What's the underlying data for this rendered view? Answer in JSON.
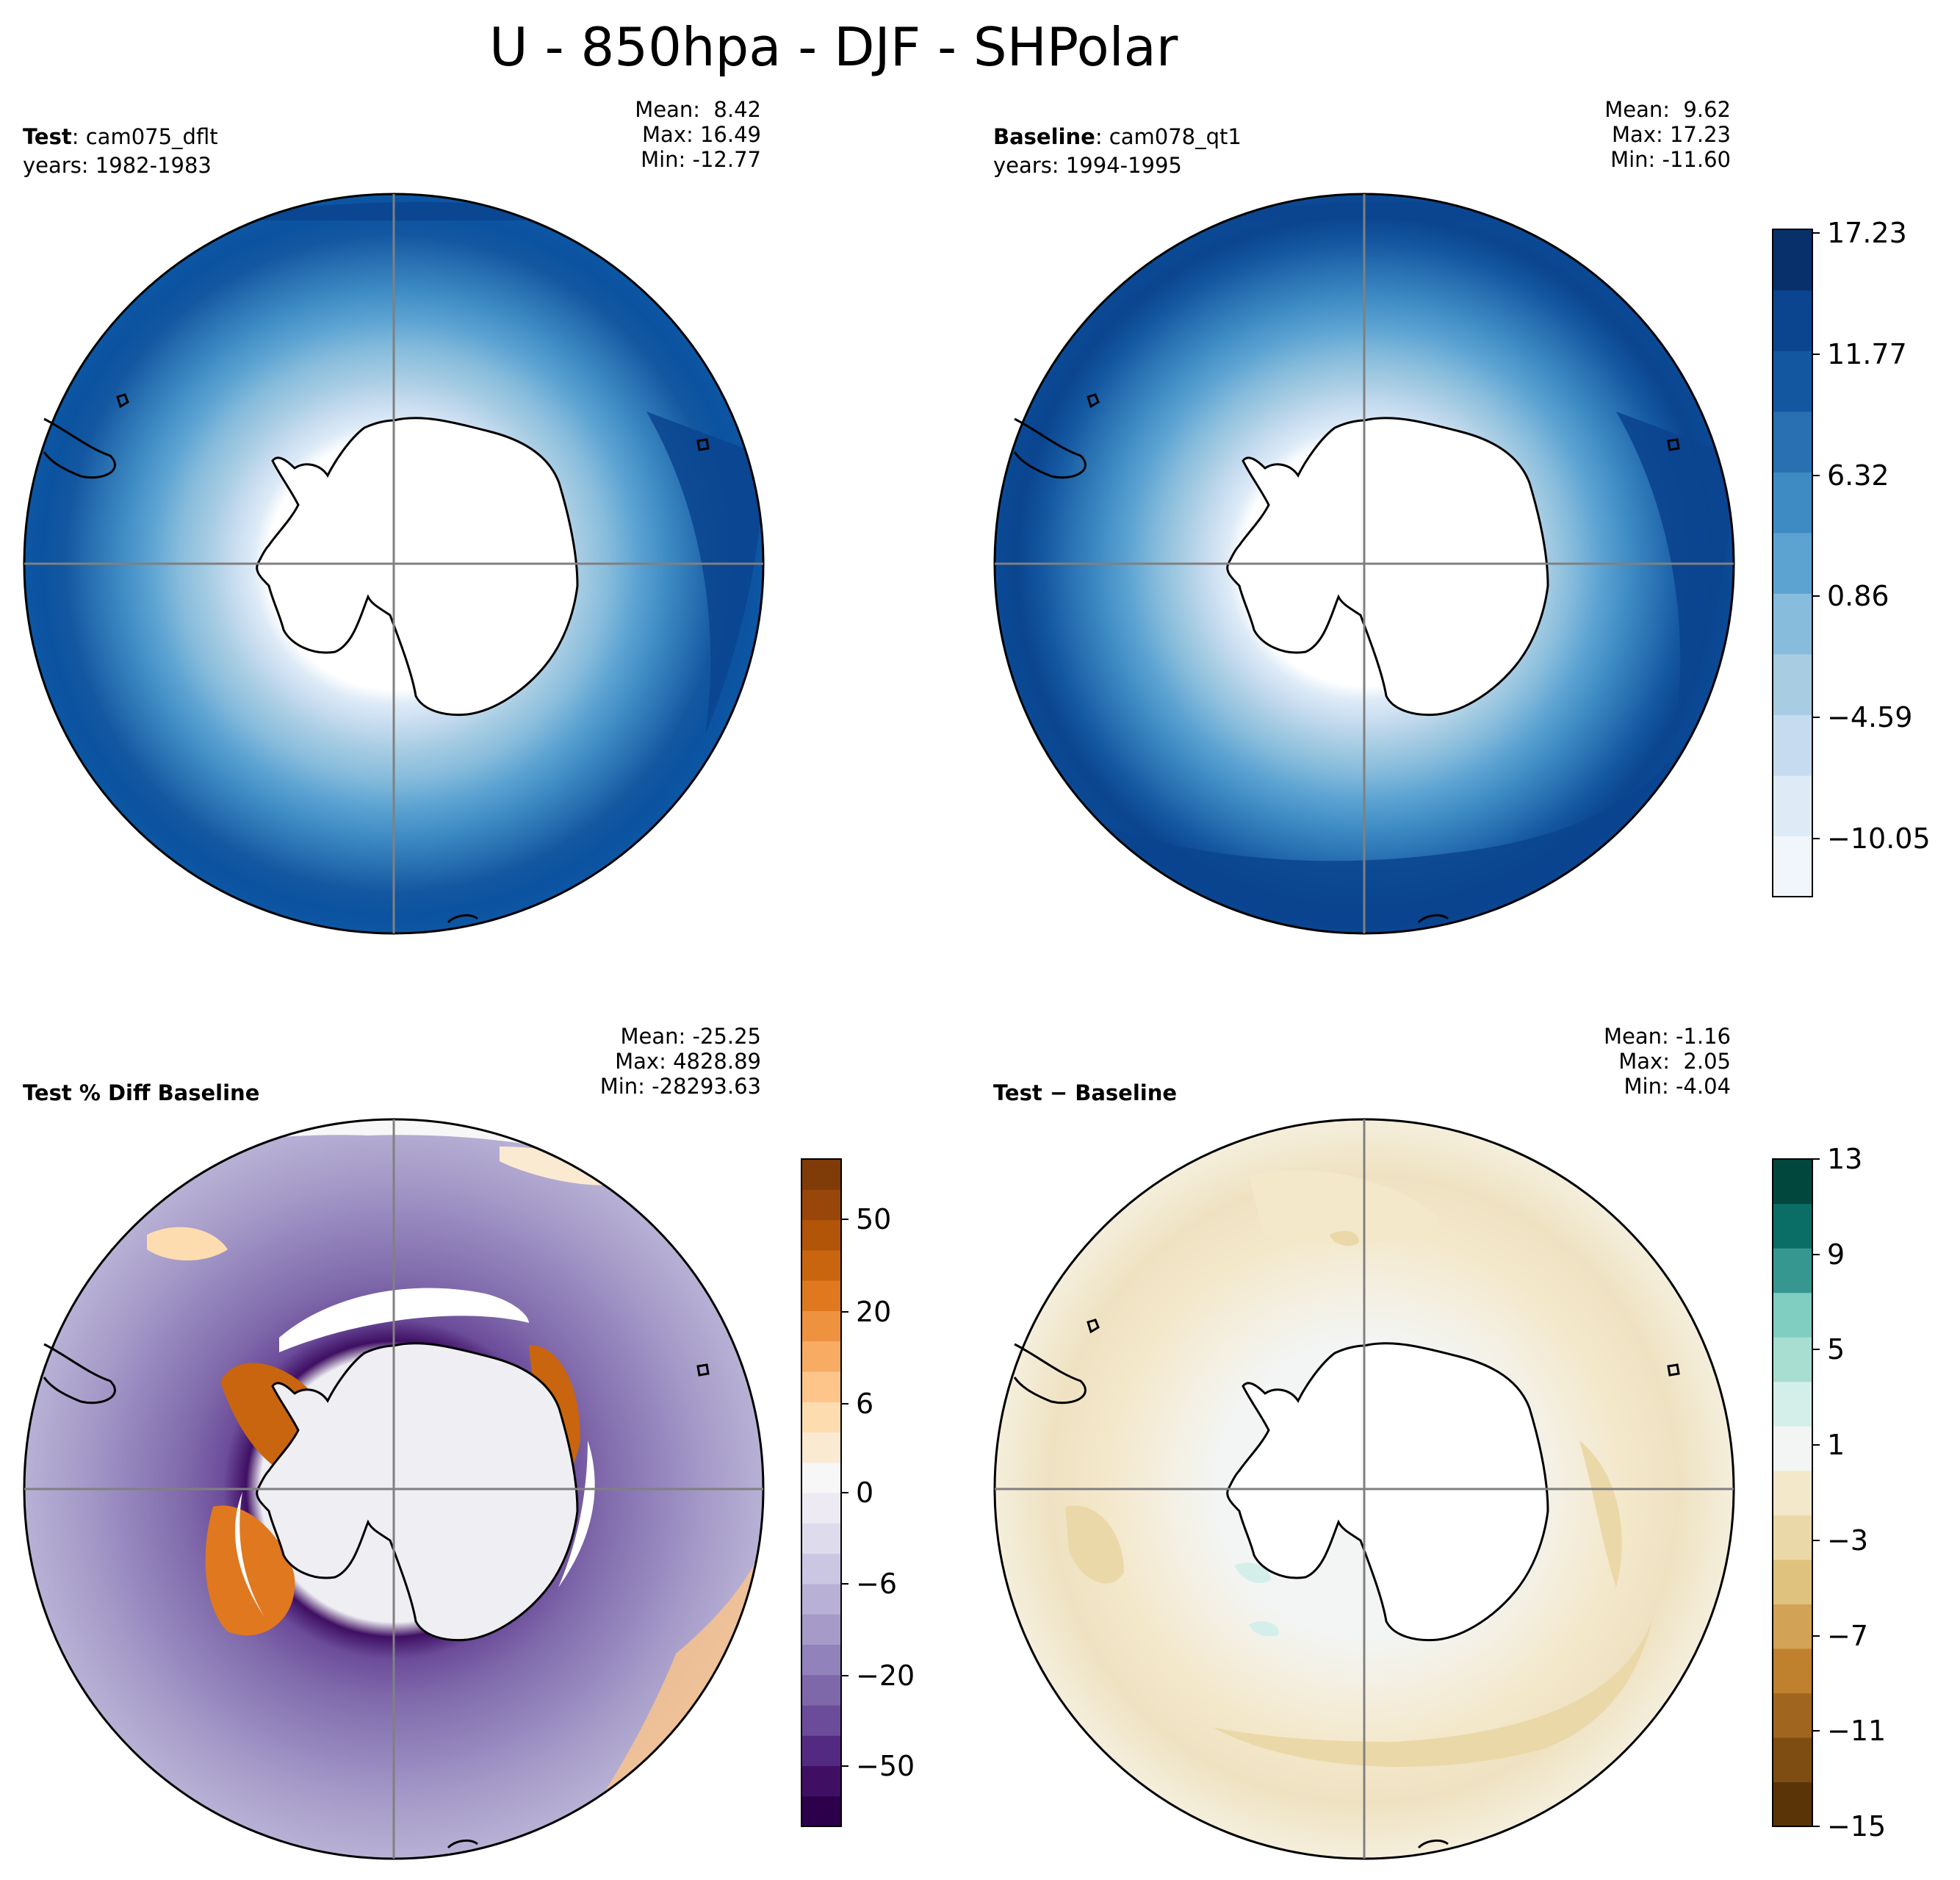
{
  "figure": {
    "title": "U - 850hpa - DJF - SHPolar"
  },
  "chart_data": [
    {
      "type": "heatmap",
      "projection": "south-polar-stereographic",
      "panel": "top-left",
      "label_bold": "Test",
      "label_rest": ": cam075_dflt",
      "years": "years: 1982-1983",
      "mean": "Mean:  8.42",
      "max": "Max: 16.49",
      "min": "Min: -12.77",
      "colormap": "Blues",
      "colorbar_shared_with_next": true
    },
    {
      "type": "heatmap",
      "projection": "south-polar-stereographic",
      "panel": "top-right",
      "label_bold": "Baseline",
      "label_rest": ": cam078_qt1",
      "years": "years: 1994-1995",
      "mean": "Mean:  9.62",
      "max": "Max: 17.23",
      "min": "Min: -11.60",
      "colormap": "Blues",
      "colorbar": {
        "range": [
          -12.77,
          17.23
        ],
        "ticks": [
          "17.23",
          "11.77",
          "6.32",
          "0.86",
          "−4.59",
          "−10.05"
        ],
        "tick_values": [
          17.23,
          11.77,
          6.32,
          0.86,
          -4.59,
          -10.05
        ],
        "levels": 11,
        "colors": [
          "#f0f6fc",
          "#deebf7",
          "#c6dbef",
          "#a8cde3",
          "#87bcdc",
          "#5ca3d2",
          "#3e8bc4",
          "#2870b1",
          "#1457a1",
          "#0b448f",
          "#08306b"
        ]
      }
    },
    {
      "type": "heatmap",
      "projection": "south-polar-stereographic",
      "panel": "bottom-left",
      "label_bold": "Test % Diff Baseline",
      "mean": "Mean: -25.25",
      "max": "Max: 4828.89",
      "min": "Min: -28293.63",
      "colormap": "PuOr",
      "colorbar": {
        "ticks": [
          "50",
          "20",
          "6",
          "0",
          "−6",
          "−20",
          "−50"
        ],
        "tick_values": [
          50,
          20,
          6,
          0,
          -6,
          -20,
          -50
        ],
        "levels": [
          "-100",
          "-70",
          "-50",
          "-40",
          "-30",
          "-20",
          "-15",
          "-10",
          "-8",
          "-6",
          "-4",
          "-2",
          "0",
          "2",
          "4",
          "6",
          "8",
          "10",
          "15",
          "20",
          "30",
          "40",
          "50",
          "70",
          "100"
        ],
        "colors": [
          "#2d004b",
          "#3f0f63",
          "#522a82",
          "#6b4c9a",
          "#7f68aa",
          "#9182bb",
          "#a59ac8",
          "#b8b1d5",
          "#cbc7e2",
          "#dedbed",
          "#edeaf3",
          "#f7f7f7",
          "#fbead2",
          "#fddcb0",
          "#fdc58a",
          "#f8ac63",
          "#ef9240",
          "#e0781f",
          "#c9650e",
          "#b25508",
          "#98460a",
          "#7f3b08"
        ]
      }
    },
    {
      "type": "heatmap",
      "projection": "south-polar-stereographic",
      "panel": "bottom-right",
      "label_bold": "Test",
      "label_rest": " − Baseline",
      "mean": "Mean: -1.16",
      "max": "Max:  2.05",
      "min": "Min: -4.04",
      "colormap": "BrBG",
      "colorbar": {
        "range": [
          -15,
          13
        ],
        "ticks": [
          "13",
          "9",
          "5",
          "1",
          "−3",
          "−7",
          "−11",
          "−15"
        ],
        "tick_values": [
          13,
          9,
          5,
          1,
          -3,
          -7,
          -11,
          -15
        ],
        "colors": [
          "#5a3307",
          "#7d4d12",
          "#a0661f",
          "#bf812d",
          "#d2a356",
          "#dfc27d",
          "#ebd8a8",
          "#f4e8cb",
          "#f3f5f4",
          "#d4efea",
          "#a8ddd2",
          "#80cdc1",
          "#35978f",
          "#0b6e66",
          "#01473d"
        ]
      }
    }
  ]
}
